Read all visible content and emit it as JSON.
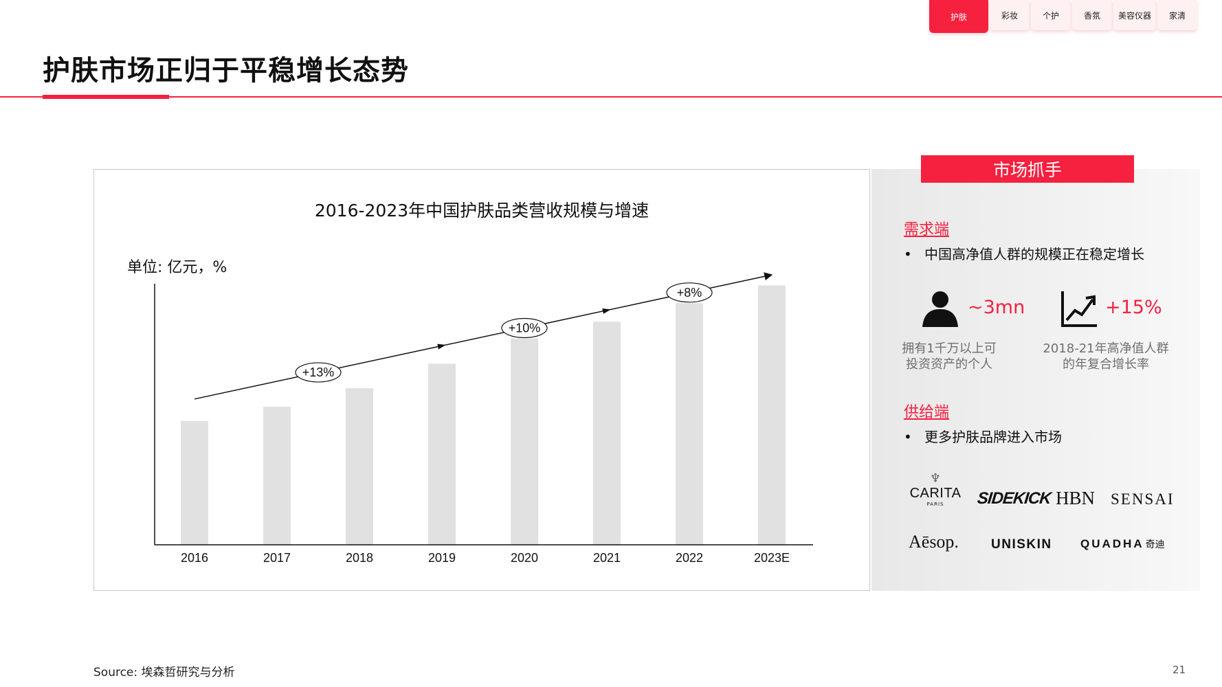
{
  "nav": {
    "tabs": [
      {
        "label": "护肤",
        "active": true
      },
      {
        "label": "彩妆",
        "active": false
      },
      {
        "label": "个护",
        "active": false
      },
      {
        "label": "香氛",
        "active": false
      },
      {
        "label": "美容仪器",
        "active": false
      },
      {
        "label": "家清",
        "active": false
      }
    ]
  },
  "page": {
    "title": "护肤市场正归于平稳增长态势",
    "source": "Source: 埃森哲研究与分析",
    "page_number": "21"
  },
  "colors": {
    "accent": "#f5213f",
    "bar": "#e1e1e1",
    "muted_text": "#6f6f6f"
  },
  "chart_data": {
    "type": "bar",
    "title": "2016-2023年中国护肤品类营收规模与增速",
    "unit_label": "单位: 亿元，%",
    "categories": [
      "2016",
      "2017",
      "2018",
      "2019",
      "2020",
      "2021",
      "2022",
      "2023E"
    ],
    "values": [
      1470,
      1640,
      1860,
      2150,
      2450,
      2650,
      2870,
      3080
    ],
    "ylim": [
      0,
      3100
    ],
    "y_axis_ticks": false,
    "grid": false,
    "trend_arrow": true,
    "growth_annotations": [
      {
        "label": "+13%",
        "position_index": 1.5
      },
      {
        "label": "+10%",
        "position_index": 4.0
      },
      {
        "label": "+8%",
        "position_index": 6.0
      }
    ]
  },
  "side": {
    "header": "市场抓手",
    "demand": {
      "label": "需求端",
      "bullet": "中国高净值人群的规模正在稳定增长",
      "stats": [
        {
          "icon": "person-icon",
          "value": "~3mn",
          "desc_line1": "拥有1千万以上可",
          "desc_line2": "投资资产的个人"
        },
        {
          "icon": "growth-chart-icon",
          "value": "+15%",
          "desc_line1": "2018-21年高净值人群",
          "desc_line2": "的年复合增长率"
        }
      ]
    },
    "supply": {
      "label": "供给端",
      "bullet": "更多护肤品牌进入市场"
    },
    "brands": [
      "CARITA",
      "PARIS",
      "SIDEKICK",
      "HBN",
      "SENSAI",
      "Aēsop.",
      "UNISKIN",
      "QUADHA",
      "奇迪"
    ]
  }
}
